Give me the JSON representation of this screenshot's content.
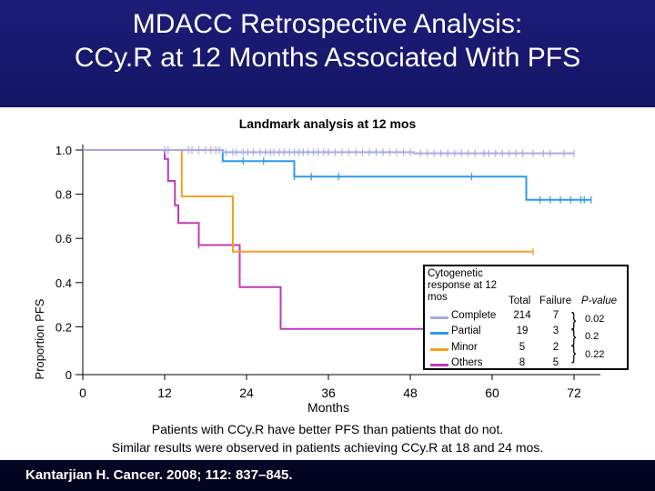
{
  "title_line1": "MDACC Retrospective Analysis:",
  "title_line2": "CCy.R at 12 Months Associated With PFS",
  "citation": "Kantarjian H. Cancer. 2008; 112: 837–845.",
  "notes": {
    "line1": "Patients with CCy.R have better PFS than patients that do not.",
    "line2": "Similar results were observed in patients achieving CCy.R at 18 and 24 mos."
  },
  "colors": {
    "complete": "#a9a9e8",
    "partial": "#2e9be8",
    "minor": "#f5a023",
    "others": "#c23ab5",
    "background_top": "#1b1d78",
    "background_bottom": "#03041e"
  },
  "legend": {
    "title": "Cytogenetic response at 12 mos",
    "col_total": "Total",
    "col_failure": "Failure",
    "col_pvalue": "P-value",
    "rows": [
      {
        "label": "Complete",
        "total": "214",
        "failure": "7"
      },
      {
        "label": "Partial",
        "total": "19",
        "failure": "3"
      },
      {
        "label": "Minor",
        "total": "5",
        "failure": "2"
      },
      {
        "label": "Others",
        "total": "8",
        "failure": "5"
      }
    ],
    "pvalues": [
      "0.02",
      "0.2",
      "0.22"
    ]
  },
  "chart_data": {
    "type": "line",
    "title": "Landmark analysis at 12 mos",
    "xlabel": "Months",
    "ylabel": "Proportion PFS",
    "xlim": [
      0,
      72
    ],
    "ylim": [
      0,
      1.0
    ],
    "x_ticks": [
      0,
      12,
      24,
      36,
      48,
      60,
      72
    ],
    "y_ticks": [
      "0",
      "0.2",
      "0.4",
      "0.6",
      "0.8",
      "1.0"
    ],
    "y_tick_values": [
      0,
      0.2,
      0.4,
      0.6,
      0.8,
      1.0
    ],
    "grid": false,
    "legend_position": "bottom-right",
    "series": [
      {
        "name": "Complete",
        "color_key": "complete",
        "steps": [
          [
            0,
            1.0
          ],
          [
            20.5,
            1.0
          ],
          [
            20.5,
            0.99
          ],
          [
            48.5,
            0.99
          ],
          [
            48.5,
            0.985
          ],
          [
            72,
            0.985
          ]
        ],
        "censors": [
          12,
          12.5,
          15.5,
          16,
          17,
          18,
          18.8,
          19.5,
          20,
          21,
          22,
          22.5,
          23.5,
          24.2,
          25,
          26,
          26.8,
          27.5,
          28,
          28.8,
          29.5,
          30.3,
          31,
          31.7,
          32.3,
          33,
          33.8,
          34.5,
          35.3,
          36,
          37,
          38,
          39,
          40,
          41,
          42,
          43,
          44,
          45,
          46,
          47,
          48,
          49.5,
          50.5,
          51.5,
          52.5,
          53.5,
          54.5,
          55.5,
          56.5,
          57.5,
          58.8,
          59.5,
          60.5,
          61.5,
          62.5,
          63.5,
          64.5,
          66,
          67.5,
          68.5,
          70.5,
          72
        ]
      },
      {
        "name": "Partial",
        "color_key": "partial",
        "steps": [
          [
            0,
            1.0
          ],
          [
            20.5,
            1.0
          ],
          [
            20.5,
            0.95
          ],
          [
            31,
            0.95
          ],
          [
            31,
            0.88
          ],
          [
            65,
            0.88
          ],
          [
            65,
            0.775
          ],
          [
            74.5,
            0.775
          ]
        ],
        "censors": [
          23.5,
          26.5,
          31,
          33.5,
          37.5,
          57,
          67,
          68.5,
          70,
          71.5,
          73,
          73.5,
          74.5
        ]
      },
      {
        "name": "Minor",
        "color_key": "minor",
        "steps": [
          [
            0,
            1.0
          ],
          [
            14.5,
            1.0
          ],
          [
            14.5,
            0.79
          ],
          [
            22,
            0.79
          ],
          [
            22,
            0.54
          ],
          [
            66,
            0.54
          ]
        ],
        "censors": [
          66
        ]
      },
      {
        "name": "Others",
        "color_key": "others",
        "steps": [
          [
            0,
            1.0
          ],
          [
            12,
            1.0
          ],
          [
            12,
            0.96
          ],
          [
            12.5,
            0.96
          ],
          [
            12.5,
            0.86
          ],
          [
            13.5,
            0.86
          ],
          [
            13.5,
            0.75
          ],
          [
            14,
            0.75
          ],
          [
            14,
            0.67
          ],
          [
            17,
            0.67
          ],
          [
            17,
            0.57
          ],
          [
            23,
            0.57
          ],
          [
            23,
            0.38
          ],
          [
            29,
            0.38
          ],
          [
            29,
            0.19
          ],
          [
            61,
            0.19
          ]
        ],
        "censors": [
          17,
          61
        ]
      }
    ]
  }
}
